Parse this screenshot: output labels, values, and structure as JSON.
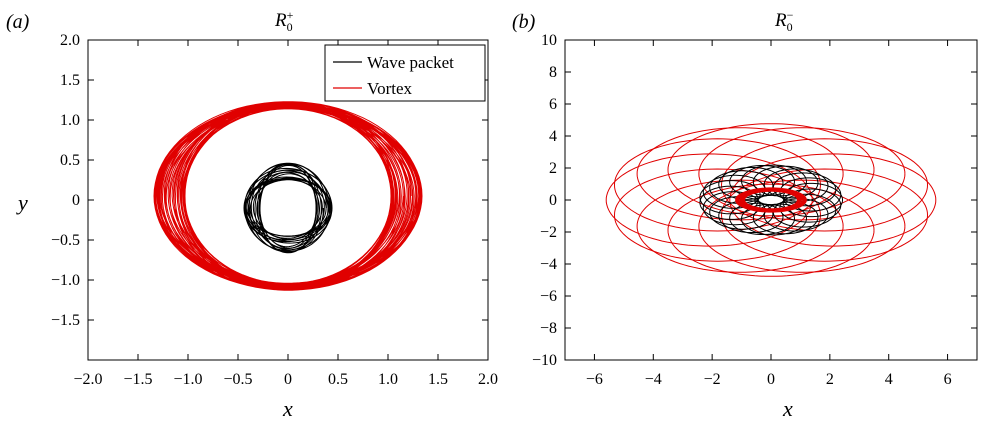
{
  "colors": {
    "wave_packet": "#000000",
    "vortex": "#e00000",
    "axes": "#000000"
  },
  "panels": [
    {
      "panel_label": "(a)",
      "title_main": "R",
      "title_sub": "0",
      "title_sup": "+",
      "xlabel": "x",
      "ylabel": "y",
      "xticks": [
        "−2.0",
        "−1.5",
        "−1.0",
        "−0.5",
        "0",
        "0.5",
        "1.0",
        "1.5",
        "2.0"
      ],
      "yticks": [
        "2.0",
        "1.5",
        "1.0",
        "0.5",
        "0",
        "−0.5",
        "−1.0",
        "−1.5"
      ],
      "legend": [
        "Wave packet",
        "Vortex"
      ]
    },
    {
      "panel_label": "(b)",
      "title_main": "R",
      "title_sub": "0",
      "title_sup": "−",
      "xlabel": "x",
      "yticks": [
        "10",
        "8",
        "6",
        "4",
        "2",
        "0",
        "−2",
        "−4",
        "−6",
        "−8",
        "−10"
      ],
      "xticks": [
        "−6",
        "−4",
        "−2",
        "0",
        "2",
        "4",
        "6"
      ]
    }
  ],
  "chart_data": [
    {
      "type": "line",
      "title": "R0+",
      "xlabel": "x",
      "ylabel": "y",
      "xlim": [
        -2.0,
        2.0
      ],
      "ylim": [
        -2.0,
        2.0
      ],
      "legend_position": "top-right",
      "series": [
        {
          "name": "Wave packet",
          "color": "#000000",
          "orbit": {
            "center": [
              0.0,
              -0.1
            ],
            "radius_x": [
              0.28,
              0.44
            ],
            "radius_y": [
              0.35,
              0.56
            ],
            "loops": 18
          }
        },
        {
          "name": "Vortex",
          "color": "#e00000",
          "orbit": {
            "center": [
              0.0,
              0.05
            ],
            "radius_x": [
              1.03,
              1.34
            ],
            "radius_y": [
              1.09,
              1.18
            ],
            "loops": 40
          }
        }
      ]
    },
    {
      "type": "line",
      "title": "R0−",
      "xlabel": "x",
      "xlim": [
        -7,
        7
      ],
      "ylim": [
        -10,
        10
      ],
      "series": [
        {
          "color": "#000000",
          "epicycle": {
            "center_radius": 1.3,
            "epicycle_radius": 1.0,
            "loops": 22
          }
        },
        {
          "color": "#e00000",
          "rotating_ellipses": {
            "semi_major": 3.5,
            "semi_minor": 1.8,
            "offset_radius": 2.1,
            "count": 12
          }
        },
        {
          "color": "#e00000",
          "ring": {
            "radius_x": [
              0.9,
              1.2
            ],
            "radius_y": [
              0.55,
              0.75
            ]
          }
        }
      ]
    }
  ]
}
